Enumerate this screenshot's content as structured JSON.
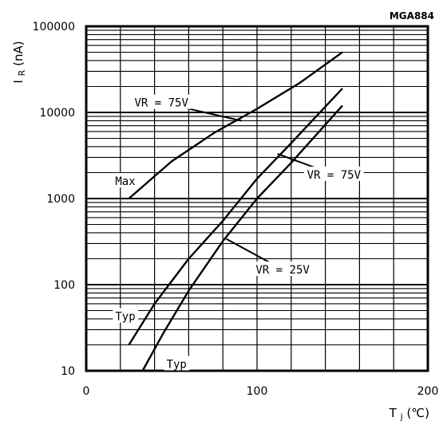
{
  "figure_code": "MGA884",
  "chart_data": {
    "type": "line",
    "ylabel": "I",
    "ylabel_sub": "R",
    "ylabel_unit": "(nA)",
    "xlabel": "T",
    "xlabel_sub": "j",
    "xlabel_unit": "(℃)",
    "xlim": [
      0,
      200
    ],
    "ylim": [
      10,
      100000
    ],
    "yscale": "log",
    "xticks": [
      0,
      100,
      200
    ],
    "xtick_labels": [
      "0",
      "100",
      "200"
    ],
    "yticks": [
      10,
      100,
      1000,
      10000,
      100000
    ],
    "ytick_labels": [
      "10",
      "100",
      "1000",
      "10000",
      "100000"
    ],
    "grid": true,
    "series": [
      {
        "name": "Max",
        "x": [
          25,
          50,
          75,
          100,
          125,
          150
        ],
        "y": [
          1000,
          2700,
          5800,
          11000,
          22000,
          50000
        ]
      },
      {
        "name": "Typ VR = 75V",
        "x": [
          25,
          40,
          60,
          80,
          100,
          120,
          150
        ],
        "y": [
          20,
          60,
          200,
          550,
          1700,
          4400,
          19000
        ]
      },
      {
        "name": "Typ VR = 25V",
        "x": [
          33,
          45,
          60,
          80,
          100,
          120,
          150
        ],
        "y": [
          10,
          27,
          85,
          320,
          1000,
          2600,
          12000
        ]
      }
    ],
    "annotations": [
      {
        "text": "VR = 75V",
        "x": 44,
        "y": 13000,
        "ax": 91,
        "ay": 8000
      },
      {
        "text": "VR = 75V",
        "x": 145,
        "y": 1900,
        "ax": 112,
        "ay": 3300
      },
      {
        "text": "VR = 25V",
        "x": 115,
        "y": 150,
        "ax": 82,
        "ay": 340
      },
      {
        "text": "Max",
        "x": 17,
        "y": 1600
      },
      {
        "text": "Typ",
        "x": 17,
        "y": 43
      },
      {
        "text": "Typ",
        "x": 47,
        "y": 12
      }
    ]
  }
}
